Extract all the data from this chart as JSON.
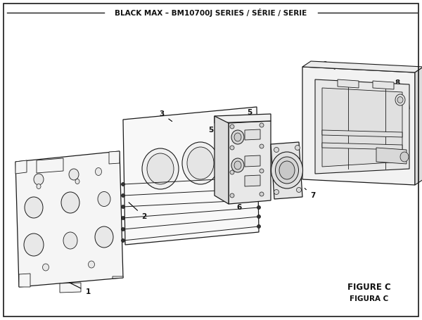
{
  "title": "BLACK MAX – BM10700J SERIES / SÉRIE / SERIE",
  "figure_label": "FIGURE C",
  "figura_label": "FIGURA C",
  "bg_color": "#ffffff",
  "border_color": "#1a1a1a",
  "text_color": "#111111",
  "line_color": "#1a1a1a",
  "fill_light": "#f2f2f2",
  "fill_mid": "#e0e0e0",
  "fill_dark": "#cccccc",
  "title_fontsize": 7.5,
  "label_fontsize": 7.5,
  "fig_label_fontsize": 8.5
}
